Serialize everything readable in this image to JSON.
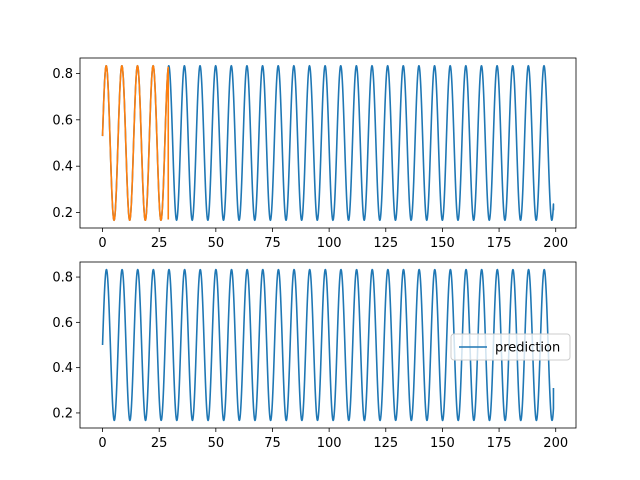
{
  "chart_data": [
    {
      "type": "line",
      "xlim": [
        -9.95,
        208.95
      ],
      "ylim": [
        0.1335,
        0.8665
      ],
      "x_ticks": [
        0,
        25,
        50,
        75,
        100,
        125,
        150,
        175,
        200
      ],
      "x_tick_labels": [
        "0",
        "25",
        "50",
        "75",
        "100",
        "125",
        "150",
        "175",
        "200"
      ],
      "y_ticks": [
        0.2,
        0.4,
        0.6,
        0.8
      ],
      "y_tick_labels": [
        "0.2",
        "0.4",
        "0.6",
        "0.8"
      ],
      "grid": false,
      "legend": null,
      "series": [
        {
          "color": "#1f77b4",
          "function": {
            "form": "sine",
            "offset": 0.5,
            "amplitude": 0.333,
            "period": 6.9,
            "phase_start_value": 0.53
          },
          "x_range": [
            0,
            199
          ],
          "end_value": 0.21
        },
        {
          "color": "#ff7f0e",
          "function": {
            "form": "sine",
            "offset": 0.5,
            "amplitude": 0.333,
            "period": 6.9,
            "phase_start_value": 0.53
          },
          "x_range": [
            0,
            29
          ],
          "end_value": 0.17
        }
      ]
    },
    {
      "type": "line",
      "xlim": [
        -9.95,
        208.95
      ],
      "ylim": [
        0.1335,
        0.8665
      ],
      "x_ticks": [
        0,
        25,
        50,
        75,
        100,
        125,
        150,
        175,
        200
      ],
      "x_tick_labels": [
        "0",
        "25",
        "50",
        "75",
        "100",
        "125",
        "150",
        "175",
        "200"
      ],
      "y_ticks": [
        0.2,
        0.4,
        0.6,
        0.8
      ],
      "y_tick_labels": [
        "0.2",
        "0.4",
        "0.6",
        "0.8"
      ],
      "grid": false,
      "legend": "center-right",
      "series": [
        {
          "name": "prediction",
          "color": "#1f77b4",
          "function": {
            "form": "sine",
            "offset": 0.5,
            "amplitude": 0.333,
            "period": 6.9,
            "phase_start_value": 0.5
          },
          "x_range": [
            0,
            199
          ],
          "end_value": 0.31
        }
      ]
    }
  ]
}
